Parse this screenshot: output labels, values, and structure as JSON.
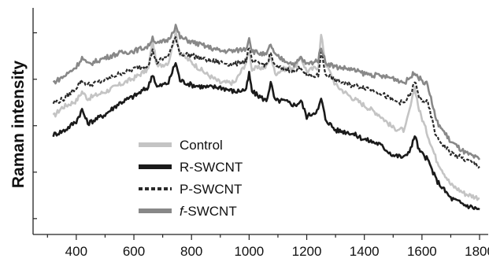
{
  "chart_data": {
    "type": "line",
    "title": "",
    "xlabel": "",
    "ylabel": "Raman intensity",
    "xlim": [
      250,
      1830
    ],
    "ylim": [
      0,
      10
    ],
    "x_ticks": [
      400,
      600,
      800,
      1000,
      1200,
      1400,
      1600,
      1800
    ],
    "x_tick_labels": [
      "400",
      "600",
      "800",
      "1000",
      "1200",
      "1400",
      "1600",
      "1800"
    ],
    "y_ticks": [
      0.7,
      2.75,
      4.8,
      6.85,
      8.9
    ],
    "grid": false,
    "legend_position": "bottom-center",
    "series": [
      {
        "name": "Control",
        "color": "#c4c4c4",
        "style": "solid",
        "points": [
          [
            320,
            5.2
          ],
          [
            350,
            5.6
          ],
          [
            400,
            5.9
          ],
          [
            420,
            6.3
          ],
          [
            440,
            6.0
          ],
          [
            500,
            6.3
          ],
          [
            550,
            6.6
          ],
          [
            600,
            6.9
          ],
          [
            650,
            7.3
          ],
          [
            665,
            8.6
          ],
          [
            680,
            7.4
          ],
          [
            720,
            7.6
          ],
          [
            745,
            8.9
          ],
          [
            760,
            8.0
          ],
          [
            800,
            7.6
          ],
          [
            850,
            7.1
          ],
          [
            900,
            6.7
          ],
          [
            950,
            6.7
          ],
          [
            990,
            7.6
          ],
          [
            1000,
            8.1
          ],
          [
            1010,
            7.3
          ],
          [
            1060,
            7.4
          ],
          [
            1075,
            7.9
          ],
          [
            1090,
            7.1
          ],
          [
            1120,
            7.3
          ],
          [
            1160,
            7.4
          ],
          [
            1180,
            7.8
          ],
          [
            1200,
            7.2
          ],
          [
            1240,
            7.4
          ],
          [
            1250,
            8.8
          ],
          [
            1265,
            7.6
          ],
          [
            1300,
            6.6
          ],
          [
            1350,
            6.1
          ],
          [
            1400,
            5.7
          ],
          [
            1450,
            5.3
          ],
          [
            1500,
            4.7
          ],
          [
            1540,
            4.6
          ],
          [
            1565,
            5.9
          ],
          [
            1575,
            6.5
          ],
          [
            1590,
            5.5
          ],
          [
            1620,
            4.4
          ],
          [
            1650,
            3.3
          ],
          [
            1700,
            2.2
          ],
          [
            1750,
            1.8
          ],
          [
            1800,
            1.6
          ]
        ]
      },
      {
        "name": "R-SWCNT",
        "color": "#1a1a1a",
        "style": "solid",
        "points": [
          [
            320,
            4.4
          ],
          [
            360,
            4.6
          ],
          [
            400,
            5.0
          ],
          [
            420,
            5.5
          ],
          [
            440,
            4.9
          ],
          [
            500,
            5.3
          ],
          [
            550,
            5.8
          ],
          [
            600,
            6.1
          ],
          [
            650,
            6.5
          ],
          [
            665,
            7.1
          ],
          [
            680,
            6.5
          ],
          [
            720,
            6.7
          ],
          [
            745,
            7.6
          ],
          [
            760,
            6.8
          ],
          [
            800,
            6.6
          ],
          [
            850,
            6.5
          ],
          [
            900,
            6.5
          ],
          [
            950,
            6.3
          ],
          [
            990,
            6.4
          ],
          [
            1000,
            7.1
          ],
          [
            1010,
            6.3
          ],
          [
            1060,
            5.9
          ],
          [
            1075,
            6.7
          ],
          [
            1090,
            5.9
          ],
          [
            1120,
            5.9
          ],
          [
            1160,
            5.7
          ],
          [
            1180,
            5.9
          ],
          [
            1200,
            5.2
          ],
          [
            1240,
            5.5
          ],
          [
            1250,
            6.0
          ],
          [
            1265,
            5.1
          ],
          [
            1300,
            4.6
          ],
          [
            1350,
            4.5
          ],
          [
            1400,
            4.2
          ],
          [
            1450,
            4.0
          ],
          [
            1500,
            3.5
          ],
          [
            1540,
            3.4
          ],
          [
            1565,
            3.9
          ],
          [
            1575,
            4.4
          ],
          [
            1590,
            3.7
          ],
          [
            1620,
            3.3
          ],
          [
            1650,
            2.4
          ],
          [
            1700,
            1.6
          ],
          [
            1750,
            1.3
          ],
          [
            1800,
            1.1
          ]
        ]
      },
      {
        "name": "P-SWCNT",
        "color": "#2a2a2a",
        "style": "dashed",
        "points": [
          [
            320,
            5.8
          ],
          [
            360,
            6.0
          ],
          [
            400,
            6.5
          ],
          [
            420,
            6.8
          ],
          [
            440,
            6.6
          ],
          [
            500,
            6.8
          ],
          [
            550,
            7.1
          ],
          [
            600,
            7.3
          ],
          [
            650,
            7.5
          ],
          [
            665,
            8.1
          ],
          [
            680,
            7.6
          ],
          [
            720,
            7.9
          ],
          [
            745,
            8.7
          ],
          [
            760,
            8.0
          ],
          [
            800,
            7.9
          ],
          [
            850,
            7.7
          ],
          [
            900,
            7.6
          ],
          [
            950,
            7.5
          ],
          [
            990,
            7.7
          ],
          [
            1000,
            8.3
          ],
          [
            1010,
            7.6
          ],
          [
            1060,
            7.5
          ],
          [
            1075,
            8.0
          ],
          [
            1090,
            7.4
          ],
          [
            1120,
            7.3
          ],
          [
            1160,
            7.2
          ],
          [
            1180,
            7.4
          ],
          [
            1200,
            7.0
          ],
          [
            1240,
            7.0
          ],
          [
            1250,
            8.1
          ],
          [
            1265,
            7.1
          ],
          [
            1300,
            6.8
          ],
          [
            1350,
            6.6
          ],
          [
            1400,
            6.5
          ],
          [
            1450,
            6.3
          ],
          [
            1500,
            5.9
          ],
          [
            1540,
            5.8
          ],
          [
            1565,
            6.3
          ],
          [
            1575,
            6.8
          ],
          [
            1590,
            6.0
          ],
          [
            1620,
            5.8
          ],
          [
            1650,
            4.3
          ],
          [
            1700,
            3.6
          ],
          [
            1750,
            3.3
          ],
          [
            1800,
            3.0
          ]
        ]
      },
      {
        "name": "f-SWCNT",
        "color": "#888888",
        "style": "solid",
        "points": [
          [
            320,
            6.7
          ],
          [
            360,
            7.0
          ],
          [
            400,
            7.4
          ],
          [
            420,
            7.8
          ],
          [
            440,
            7.5
          ],
          [
            500,
            7.8
          ],
          [
            550,
            8.0
          ],
          [
            600,
            8.1
          ],
          [
            650,
            8.3
          ],
          [
            665,
            8.7
          ],
          [
            680,
            8.4
          ],
          [
            720,
            8.6
          ],
          [
            745,
            9.2
          ],
          [
            760,
            8.7
          ],
          [
            800,
            8.5
          ],
          [
            850,
            8.3
          ],
          [
            900,
            8.1
          ],
          [
            950,
            8.1
          ],
          [
            990,
            8.2
          ],
          [
            1000,
            8.7
          ],
          [
            1010,
            8.1
          ],
          [
            1060,
            7.9
          ],
          [
            1075,
            8.4
          ],
          [
            1090,
            7.9
          ],
          [
            1120,
            7.7
          ],
          [
            1160,
            7.5
          ],
          [
            1180,
            7.8
          ],
          [
            1200,
            7.5
          ],
          [
            1240,
            7.7
          ],
          [
            1250,
            8.3
          ],
          [
            1265,
            7.6
          ],
          [
            1300,
            7.4
          ],
          [
            1350,
            7.3
          ],
          [
            1400,
            7.1
          ],
          [
            1450,
            7.0
          ],
          [
            1500,
            6.9
          ],
          [
            1540,
            6.7
          ],
          [
            1565,
            7.0
          ],
          [
            1575,
            7.2
          ],
          [
            1590,
            6.9
          ],
          [
            1620,
            6.6
          ],
          [
            1650,
            5.0
          ],
          [
            1700,
            4.1
          ],
          [
            1750,
            3.6
          ],
          [
            1800,
            3.3
          ]
        ]
      }
    ]
  },
  "legend": {
    "items": [
      {
        "label_prefix": "",
        "label_italic": "",
        "label_rest": "Control",
        "color": "#c4c4c4",
        "style": "solid"
      },
      {
        "label_prefix": "",
        "label_italic": "",
        "label_rest": "R-SWCNT",
        "color": "#1a1a1a",
        "style": "solid"
      },
      {
        "label_prefix": "",
        "label_italic": "",
        "label_rest": "P-SWCNT",
        "color": "#2a2a2a",
        "style": "dashed"
      },
      {
        "label_prefix": "",
        "label_italic": "f",
        "label_rest": "-SWCNT",
        "color": "#888888",
        "style": "solid"
      }
    ]
  }
}
